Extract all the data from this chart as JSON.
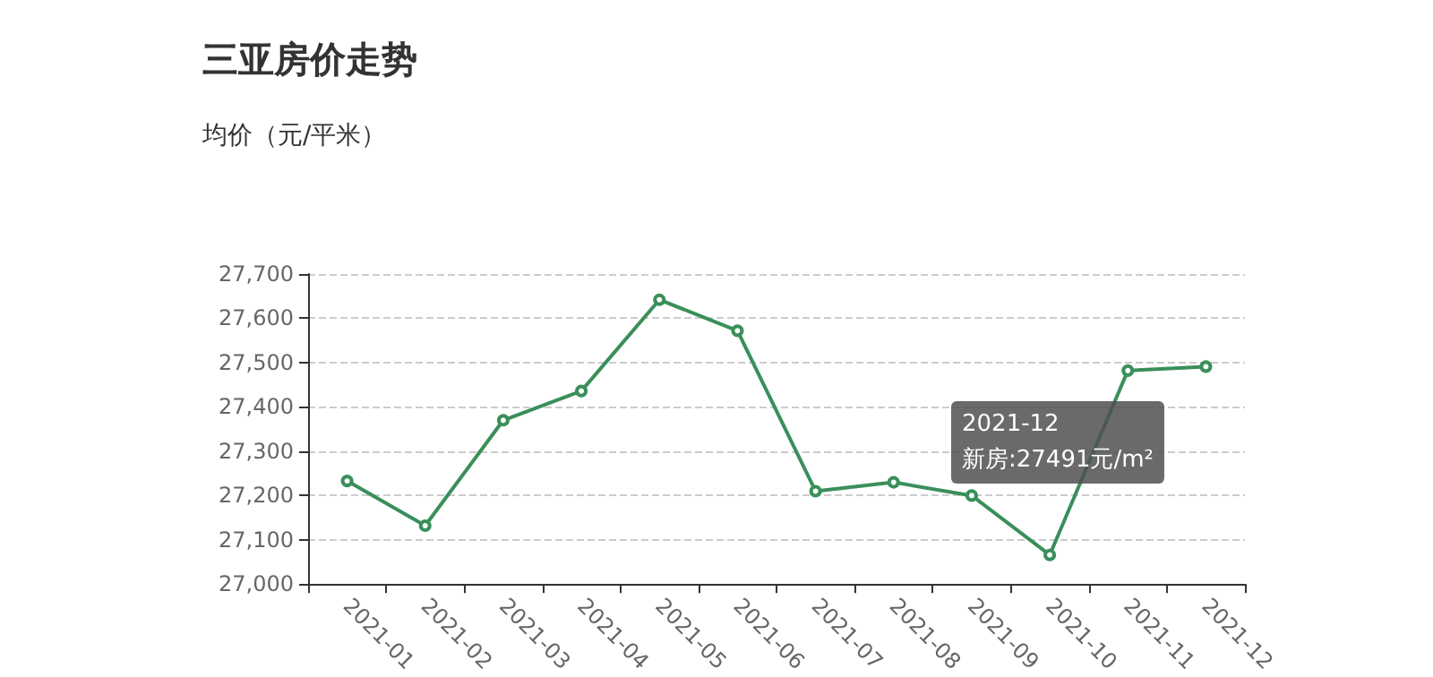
{
  "chart_data": {
    "type": "line",
    "title": "三亚房价走势",
    "subtitle": "均价（元/平米）",
    "categories": [
      "2021-01",
      "2021-02",
      "2021-03",
      "2021-04",
      "2021-05",
      "2021-06",
      "2021-07",
      "2021-08",
      "2021-09",
      "2021-10",
      "2021-11",
      "2021-12"
    ],
    "series": [
      {
        "color": "#3a8f5a",
        "values": [
          27233,
          27132,
          27370,
          27436,
          27642,
          27572,
          27210,
          27230,
          27200,
          27066,
          27482,
          27491
        ]
      }
    ],
    "ylim": [
      27000,
      27700
    ],
    "yticks": [
      {
        "value": 27000,
        "label": "27,000"
      },
      {
        "value": 27100,
        "label": "27,100"
      },
      {
        "value": 27200,
        "label": "27,200"
      },
      {
        "value": 27300,
        "label": "27,300"
      },
      {
        "value": 27400,
        "label": "27,400"
      },
      {
        "value": 27500,
        "label": "27,500"
      },
      {
        "value": 27600,
        "label": "27,600"
      },
      {
        "value": 27700,
        "label": "27,700"
      }
    ],
    "grid": "y",
    "marker": "circle",
    "line_style": "solid",
    "annotations": [
      "2021-12\n新房:27491元/m²"
    ]
  }
}
